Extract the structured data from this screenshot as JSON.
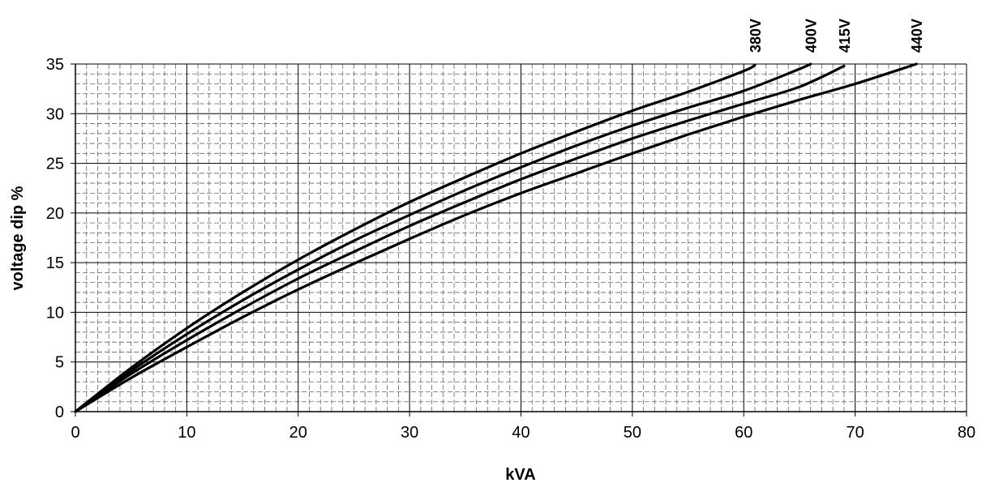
{
  "chart_data": {
    "type": "line",
    "title": "",
    "xlabel": "kVA",
    "ylabel": "voltage dip %",
    "xlim": [
      0,
      80
    ],
    "ylim": [
      0,
      35
    ],
    "x_ticks": [
      0,
      10,
      20,
      30,
      40,
      50,
      60,
      70,
      80
    ],
    "y_ticks": [
      0,
      5,
      10,
      15,
      20,
      25,
      30,
      35
    ],
    "grid": true,
    "legend": "series labels at top end of each curve",
    "series": [
      {
        "name": "380V",
        "x": [
          0,
          5,
          10,
          15,
          20,
          25,
          30,
          35,
          40,
          45,
          50,
          55,
          60,
          61
        ],
        "y": [
          0,
          4.4,
          8.4,
          12.0,
          15.3,
          18.3,
          21.1,
          23.6,
          26.0,
          28.2,
          30.3,
          32.2,
          34.3,
          34.9
        ]
      },
      {
        "name": "400V",
        "x": [
          0,
          5,
          10,
          15,
          20,
          25,
          30,
          35,
          40,
          45,
          50,
          55,
          60,
          65,
          66
        ],
        "y": [
          0,
          4.1,
          7.8,
          11.2,
          14.3,
          17.2,
          19.8,
          22.3,
          24.6,
          26.8,
          28.8,
          30.6,
          32.3,
          34.5,
          35.0
        ]
      },
      {
        "name": "415V",
        "x": [
          0,
          5,
          10,
          15,
          20,
          25,
          30,
          35,
          40,
          45,
          50,
          55,
          60,
          65,
          69
        ],
        "y": [
          0,
          3.8,
          7.2,
          10.4,
          13.4,
          16.1,
          18.7,
          21.1,
          23.4,
          25.5,
          27.5,
          29.3,
          31.0,
          32.7,
          34.8
        ]
      },
      {
        "name": "440V",
        "x": [
          0,
          5,
          10,
          15,
          20,
          25,
          30,
          35,
          40,
          45,
          50,
          55,
          60,
          65,
          70,
          75.5
        ],
        "y": [
          0,
          3.4,
          6.5,
          9.5,
          12.3,
          14.9,
          17.4,
          19.8,
          22.0,
          24.0,
          26.0,
          27.9,
          29.7,
          31.4,
          33.0,
          35.0
        ]
      }
    ]
  }
}
